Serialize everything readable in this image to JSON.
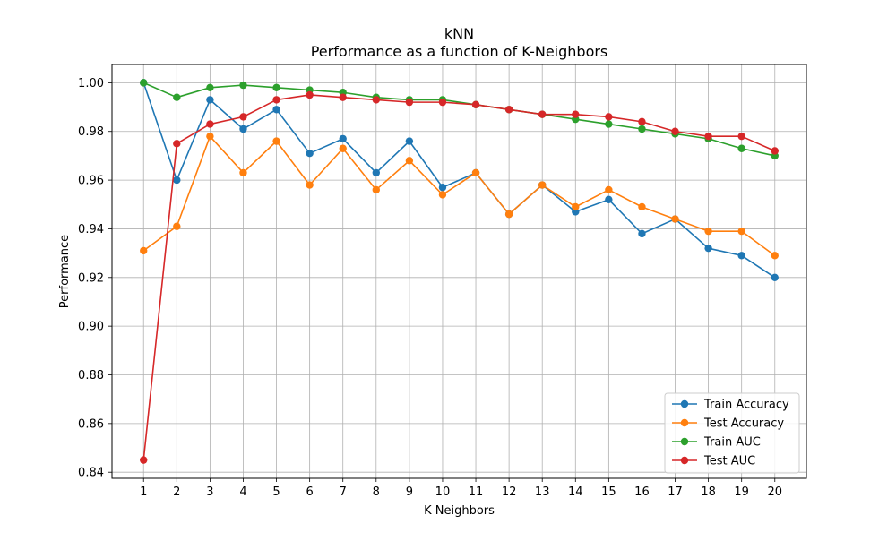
{
  "chart_data": {
    "type": "line",
    "title": "kNN",
    "subtitle": "Performance as a function of K-Neighbors",
    "xlabel": "K Neighbors",
    "ylabel": "Performance",
    "x": [
      1,
      2,
      3,
      4,
      5,
      6,
      7,
      8,
      9,
      10,
      11,
      12,
      13,
      14,
      15,
      16,
      17,
      18,
      19,
      20
    ],
    "x_ticks": [
      "1",
      "2",
      "3",
      "4",
      "5",
      "6",
      "7",
      "8",
      "9",
      "10",
      "11",
      "12",
      "13",
      "14",
      "15",
      "16",
      "17",
      "18",
      "19",
      "20"
    ],
    "xlim": [
      0.05,
      20.95
    ],
    "ylim": [
      0.8375,
      1.0075
    ],
    "y_ticks": [
      "0.84",
      "0.86",
      "0.88",
      "0.90",
      "0.92",
      "0.94",
      "0.96",
      "0.98",
      "1.00"
    ],
    "grid": true,
    "legend_position": "lower-right",
    "marker": "circle",
    "series": [
      {
        "name": "Train Accuracy",
        "color": "#1f77b4",
        "values": [
          1.0,
          0.96,
          0.993,
          0.981,
          0.989,
          0.971,
          0.977,
          0.963,
          0.976,
          0.957,
          0.963,
          0.946,
          0.958,
          0.947,
          0.952,
          0.938,
          0.944,
          0.932,
          0.929,
          0.92
        ]
      },
      {
        "name": "Test Accuracy",
        "color": "#ff7f0e",
        "values": [
          0.931,
          0.941,
          0.978,
          0.963,
          0.976,
          0.958,
          0.973,
          0.956,
          0.968,
          0.954,
          0.963,
          0.946,
          0.958,
          0.949,
          0.956,
          0.949,
          0.944,
          0.939,
          0.939,
          0.929
        ]
      },
      {
        "name": "Train AUC",
        "color": "#2ca02c",
        "values": [
          1.0,
          0.994,
          0.998,
          0.999,
          0.998,
          0.997,
          0.996,
          0.994,
          0.993,
          0.993,
          0.991,
          0.989,
          0.987,
          0.985,
          0.983,
          0.981,
          0.979,
          0.977,
          0.973,
          0.97
        ]
      },
      {
        "name": "Test AUC",
        "color": "#d62728",
        "values": [
          0.845,
          0.975,
          0.983,
          0.986,
          0.993,
          0.995,
          0.994,
          0.993,
          0.992,
          0.992,
          0.991,
          0.989,
          0.987,
          0.987,
          0.986,
          0.984,
          0.98,
          0.978,
          0.978,
          0.972
        ]
      }
    ]
  }
}
